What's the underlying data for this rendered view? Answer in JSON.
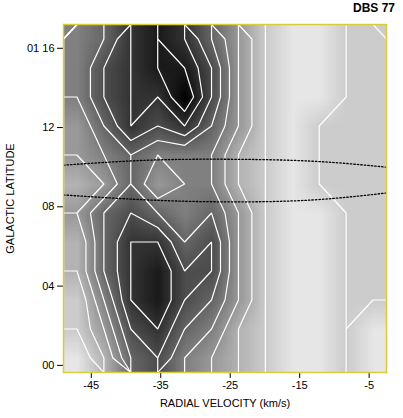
{
  "chart_data": {
    "type": "heatmap",
    "title": "DBS 77",
    "x_label": "RADIAL VELOCITY (km/s)",
    "y_label": "GALACTIC LATITUDE",
    "xlim": [
      -49,
      -2.5
    ],
    "ylim": [
      -0.36,
      17.2
    ],
    "xticks": [
      -45,
      -35,
      -25,
      -15,
      -5
    ],
    "yticks": [
      {
        "value": 16,
        "label": "01 16"
      },
      {
        "value": 12,
        "label": "12"
      },
      {
        "value": 8,
        "label": "08"
      },
      {
        "value": 4,
        "label": "04"
      },
      {
        "value": 0,
        "label": "00"
      }
    ],
    "zlim": [
      0,
      10
    ],
    "z": [
      [
        5,
        6,
        8,
        9,
        8,
        6,
        4,
        2,
        1,
        1,
        2,
        2
      ],
      [
        5,
        7,
        8,
        9,
        9,
        7,
        4,
        2,
        1,
        1,
        2,
        2
      ],
      [
        5,
        7,
        8,
        8,
        10,
        7,
        4,
        2,
        1,
        1,
        2,
        2
      ],
      [
        4,
        6,
        8,
        7,
        8,
        6,
        4,
        2,
        1,
        2,
        2,
        2
      ],
      [
        4,
        5,
        6,
        5,
        5,
        5,
        3,
        2,
        1,
        2,
        2,
        2
      ],
      [
        3,
        4,
        6,
        4,
        5,
        5,
        3,
        2,
        1,
        2,
        2,
        2
      ],
      [
        4,
        6,
        7,
        6,
        5,
        6,
        4,
        2,
        1,
        1,
        2,
        2
      ],
      [
        3,
        6,
        8,
        8,
        6,
        7,
        4,
        2,
        1,
        1,
        2,
        2
      ],
      [
        3,
        6,
        8,
        9,
        7,
        7,
        4,
        2,
        1,
        1,
        2,
        2
      ],
      [
        2,
        5,
        8,
        9,
        7,
        6,
        4,
        2,
        1,
        1,
        2,
        2
      ],
      [
        2,
        4,
        7,
        8,
        6,
        5,
        3,
        2,
        1,
        1,
        2,
        1
      ],
      [
        1,
        3,
        6,
        7,
        5,
        4,
        3,
        2,
        1,
        1,
        2,
        1
      ]
    ],
    "contours": {
      "levels": [
        2,
        3,
        4,
        5,
        6,
        7,
        8,
        9
      ],
      "color": "#ffffff"
    },
    "series": [
      {
        "type": "line",
        "line_style": "dotted",
        "color": "#000000",
        "x": [
          -49,
          -37,
          -25,
          -13,
          -2.5
        ],
        "values": [
          10.1,
          10.35,
          10.4,
          10.3,
          10.0
        ]
      },
      {
        "type": "line",
        "line_style": "dotted",
        "color": "#000000",
        "x": [
          -49,
          -37,
          -25,
          -13,
          -2.5
        ],
        "values": [
          8.6,
          8.35,
          8.25,
          8.35,
          8.7
        ]
      }
    ]
  }
}
